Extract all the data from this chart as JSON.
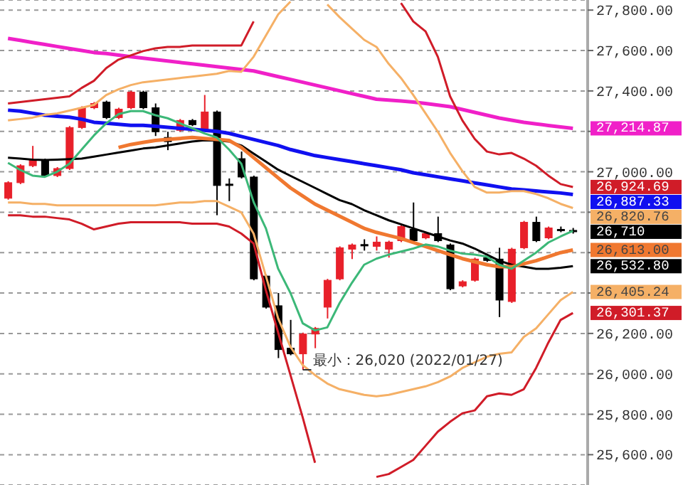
{
  "chart_data": {
    "type": "candlestick",
    "categories": [
      null,
      null,
      null,
      null,
      null,
      null,
      null,
      null,
      null,
      null,
      null,
      null,
      null,
      null,
      null,
      null,
      null,
      null,
      null,
      null,
      null,
      null,
      null,
      null,
      null,
      null,
      null,
      null,
      null,
      null,
      null,
      null,
      null,
      null,
      null,
      null,
      null,
      null,
      null,
      null,
      null,
      null,
      null,
      null,
      null,
      null,
      null
    ],
    "ohlc": [
      [
        26869,
        26953,
        26862,
        26946
      ],
      [
        26946,
        27037,
        26939,
        27030
      ],
      [
        27030,
        27128,
        27023,
        27058
      ],
      [
        27058,
        27065,
        26974,
        26981
      ],
      [
        26981,
        27023,
        26974,
        27016
      ],
      [
        27016,
        27226,
        27009,
        27219
      ],
      [
        27219,
        27324,
        27212,
        27317
      ],
      [
        27317,
        27345,
        27310,
        27338
      ],
      [
        27345,
        27352,
        27261,
        27268
      ],
      [
        27268,
        27317,
        27261,
        27310
      ],
      [
        27317,
        27401,
        27310,
        27394
      ],
      [
        27394,
        27401,
        27310,
        27317
      ],
      [
        27317,
        27338,
        27177,
        27198
      ],
      [
        27170,
        27198,
        27107,
        27149
      ],
      [
        27205,
        27261,
        27198,
        27254
      ],
      [
        27254,
        27261,
        27226,
        27233
      ],
      [
        27212,
        27380,
        27205,
        27296
      ],
      [
        27296,
        27303,
        26785,
        26932
      ],
      [
        26939,
        26967,
        26855,
        26932
      ],
      [
        27065,
        27100,
        26967,
        26974
      ],
      [
        26974,
        26981,
        26463,
        26470
      ],
      [
        26484,
        26491,
        26323,
        26330
      ],
      [
        26337,
        26400,
        26078,
        26120
      ],
      [
        26127,
        26267,
        26092,
        26099
      ],
      [
        26099,
        26204,
        26020,
        26197
      ],
      [
        26197,
        26232,
        26127,
        26225
      ],
      [
        26330,
        26470,
        26274,
        26463
      ],
      [
        26470,
        26631,
        26463,
        26624
      ],
      [
        26617,
        26645,
        26568,
        26638
      ],
      [
        26640,
        26666,
        26610,
        26638
      ],
      [
        26631,
        26680,
        26610,
        26652
      ],
      [
        26617,
        26659,
        26575,
        26652
      ],
      [
        26659,
        26736,
        26652,
        26729
      ],
      [
        26715,
        26848,
        26652,
        26659
      ],
      [
        26673,
        26701,
        26666,
        26694
      ],
      [
        26694,
        26778,
        26652,
        26659
      ],
      [
        26638,
        26645,
        26414,
        26421
      ],
      [
        26435,
        26463,
        26428,
        26456
      ],
      [
        26463,
        26575,
        26456,
        26568
      ],
      [
        26575,
        26582,
        26554,
        26561
      ],
      [
        26568,
        26624,
        26281,
        26365
      ],
      [
        26358,
        26624,
        26351,
        26617
      ],
      [
        26624,
        26757,
        26617,
        26750
      ],
      [
        26750,
        26778,
        26652,
        26659
      ],
      [
        26673,
        26729,
        26666,
        26722
      ],
      [
        26715,
        26729,
        26701,
        26708
      ],
      [
        26710,
        26722,
        26694,
        26710
      ]
    ],
    "colors": [
      "#e8202a",
      "#e8202a",
      "#e8202a",
      "#000000",
      "#e8202a",
      "#e8202a",
      "#e8202a",
      "#e8202a",
      "#000000",
      "#e8202a",
      "#e8202a",
      "#000000",
      "#000000",
      "#000000",
      "#e8202a",
      "#000000",
      "#e8202a",
      "#000000",
      "#000000",
      "#000000",
      "#000000",
      "#000000",
      "#000000",
      "#000000",
      "#e8202a",
      "#e8202a",
      "#e8202a",
      "#e8202a",
      "#e8202a",
      "#000000",
      "#e8202a",
      "#e8202a",
      "#e8202a",
      "#000000",
      "#e8202a",
      "#000000",
      "#000000",
      "#e8202a",
      "#e8202a",
      "#000000",
      "#000000",
      "#e8202a",
      "#e8202a",
      "#000000",
      "#e8202a",
      "#000000",
      "#000000"
    ],
    "value_labels": [
      null,
      null,
      null,
      null,
      null,
      null,
      null,
      null,
      null,
      null,
      null,
      null,
      null,
      null,
      null,
      null,
      null,
      null,
      null,
      null,
      null,
      null,
      null,
      null,
      null,
      null,
      null,
      null,
      null,
      null,
      null,
      null,
      null,
      null,
      null,
      null,
      null,
      null,
      null,
      null,
      null,
      null,
      null,
      null,
      null,
      null,
      "26,710"
    ],
    "series": [
      {
        "type": "line",
        "color": "#f020c8",
        "values": [
          27660,
          27650,
          27640,
          27630,
          27620,
          27610,
          27600,
          27590,
          27585,
          27577,
          27569,
          27562,
          27555,
          27548,
          27541,
          27534,
          27527,
          27520,
          27513,
          27506,
          27499,
          27485,
          27471,
          27457,
          27443,
          27429,
          27415,
          27401,
          27387,
          27373,
          27359,
          27355,
          27350,
          27345,
          27338,
          27330,
          27322,
          27308,
          27294,
          27280,
          27266,
          27255,
          27245,
          27237,
          27229,
          27222,
          27214.87
        ],
        "value_labels": [
          null,
          null,
          null,
          null,
          null,
          null,
          null,
          null,
          null,
          null,
          null,
          null,
          null,
          null,
          null,
          null,
          null,
          null,
          null,
          null,
          null,
          null,
          null,
          null,
          null,
          null,
          null,
          null,
          null,
          null,
          null,
          null,
          null,
          null,
          null,
          null,
          null,
          null,
          null,
          null,
          null,
          null,
          null,
          null,
          null,
          null,
          "27,214.87"
        ]
      },
      {
        "type": "line",
        "color": "#d01c28",
        "values": [
          27338,
          27345,
          27352,
          27359,
          27366,
          27373,
          27415,
          27450,
          27513,
          27555,
          27576,
          27597,
          27611,
          27618,
          27618,
          27625,
          27625,
          27625,
          27625,
          27625,
          27744,
          null,
          null,
          null,
          null,
          null,
          null,
          null,
          null,
          null,
          null,
          null,
          27835,
          27744,
          27695,
          27569,
          27373,
          27254,
          27163,
          27100,
          27086,
          27093,
          27065,
          27030,
          26981,
          26939,
          26924.69
        ],
        "value_labels": [
          null,
          null,
          null,
          null,
          null,
          null,
          null,
          null,
          null,
          null,
          null,
          null,
          null,
          null,
          null,
          null,
          null,
          null,
          null,
          null,
          null,
          null,
          null,
          null,
          null,
          null,
          null,
          null,
          null,
          null,
          null,
          null,
          null,
          null,
          null,
          null,
          null,
          null,
          null,
          null,
          null,
          null,
          null,
          null,
          null,
          null,
          "26,924.69"
        ]
      },
      {
        "type": "line",
        "color": "#1010f0",
        "values": [
          27305,
          27300,
          27290,
          27280,
          27275,
          27270,
          27260,
          27245,
          27240,
          27235,
          27230,
          27230,
          27225,
          27220,
          27215,
          27210,
          27205,
          27200,
          27190,
          27175,
          27160,
          27145,
          27130,
          27110,
          27095,
          27080,
          27070,
          27060,
          27050,
          27040,
          27030,
          27020,
          27010,
          26995,
          26985,
          26975,
          26965,
          26955,
          26945,
          26935,
          26925,
          26915,
          26910,
          26905,
          26900,
          26895,
          26887.33
        ],
        "value_labels": [
          null,
          null,
          null,
          null,
          null,
          null,
          null,
          null,
          null,
          null,
          null,
          null,
          null,
          null,
          null,
          null,
          null,
          null,
          null,
          null,
          null,
          null,
          null,
          null,
          null,
          null,
          null,
          null,
          null,
          null,
          null,
          null,
          null,
          null,
          null,
          null,
          null,
          null,
          null,
          null,
          null,
          null,
          null,
          null,
          null,
          null,
          "26,887.33"
        ]
      },
      {
        "type": "line",
        "color": "#f5b066",
        "values": [
          27254,
          27261,
          27268,
          27282,
          27289,
          27303,
          27317,
          27331,
          27380,
          27408,
          27429,
          27443,
          27450,
          27457,
          27464,
          27471,
          27478,
          27485,
          27499,
          27495,
          27569,
          27674,
          27779,
          27842,
          null,
          null,
          27828,
          27765,
          27709,
          27653,
          27618,
          27534,
          27464,
          27380,
          27289,
          27198,
          27093,
          27003,
          26925,
          26897,
          26897,
          26904,
          26904,
          26890,
          26869,
          26841,
          26820.76
        ],
        "value_labels": [
          null,
          null,
          null,
          null,
          null,
          null,
          null,
          null,
          null,
          null,
          null,
          null,
          null,
          null,
          null,
          null,
          null,
          null,
          null,
          null,
          null,
          null,
          null,
          null,
          null,
          null,
          null,
          null,
          null,
          null,
          null,
          null,
          null,
          null,
          null,
          null,
          null,
          null,
          null,
          null,
          null,
          null,
          null,
          null,
          null,
          null,
          "26,820.76"
        ]
      },
      {
        "type": "line",
        "color": "#000000",
        "values": [
          27070,
          27065,
          27060,
          27058,
          27060,
          27063,
          27065,
          27075,
          27085,
          27095,
          27105,
          27115,
          27121,
          27130,
          27140,
          27150,
          27156,
          27155,
          27150,
          27130,
          27090,
          27050,
          27010,
          26980,
          26950,
          26920,
          26890,
          26860,
          26840,
          26810,
          26785,
          26760,
          26740,
          26720,
          26700,
          26680,
          26660,
          26645,
          26620,
          26590,
          26560,
          26540,
          26530,
          26520,
          26520,
          26525,
          26532.8
        ],
        "value_labels": [
          null,
          null,
          null,
          null,
          null,
          null,
          null,
          null,
          null,
          null,
          null,
          null,
          null,
          null,
          null,
          null,
          null,
          null,
          null,
          null,
          null,
          null,
          null,
          null,
          null,
          null,
          null,
          null,
          null,
          null,
          null,
          null,
          null,
          null,
          null,
          null,
          null,
          null,
          null,
          null,
          null,
          null,
          null,
          null,
          null,
          null,
          "26,532.80"
        ]
      },
      {
        "type": "line",
        "color": "#f07830",
        "values": [
          null,
          null,
          null,
          null,
          null,
          null,
          null,
          null,
          null,
          27120,
          27135,
          27145,
          27155,
          27160,
          27165,
          27170,
          27165,
          27160,
          27155,
          27120,
          27070,
          27020,
          26970,
          26920,
          26880,
          26840,
          26810,
          26780,
          26750,
          26720,
          26700,
          26685,
          26670,
          26650,
          26630,
          26610,
          26590,
          26570,
          26555,
          26540,
          26530,
          26530,
          26545,
          26560,
          26580,
          26600,
          26613
        ],
        "value_labels": [
          null,
          null,
          null,
          null,
          null,
          null,
          null,
          null,
          null,
          null,
          null,
          null,
          null,
          null,
          null,
          null,
          null,
          null,
          null,
          null,
          null,
          null,
          null,
          null,
          null,
          null,
          null,
          null,
          null,
          null,
          null,
          null,
          null,
          null,
          null,
          null,
          null,
          null,
          null,
          null,
          null,
          null,
          null,
          null,
          null,
          null,
          "26,613.00"
        ]
      },
      {
        "type": "line",
        "color": "#3cb878",
        "values": [
          27044,
          27009,
          26981,
          26975,
          27000,
          27040,
          27110,
          27180,
          27240,
          27285,
          27300,
          27300,
          27280,
          27265,
          27240,
          27215,
          27190,
          27170,
          27110,
          27040,
          26850,
          26720,
          26520,
          26400,
          26250,
          26215,
          26230,
          26350,
          26450,
          26540,
          26570,
          26590,
          26605,
          26620,
          26640,
          26630,
          26610,
          26595,
          26590,
          26580,
          26540,
          26520,
          26560,
          26600,
          26650,
          26680,
          26708
        ]
      },
      {
        "type": "line",
        "color": "#f5b066",
        "values": [
          26848,
          26848,
          26841,
          26841,
          26834,
          26834,
          26834,
          26834,
          26834,
          26834,
          26834,
          26834,
          26834,
          26841,
          26848,
          26848,
          26855,
          26855,
          26827,
          26799,
          26694,
          26484,
          26274,
          26134,
          26043,
          25994,
          25952,
          25924,
          25910,
          25896,
          25889,
          25896,
          25910,
          25924,
          25938,
          25959,
          25987,
          26029,
          26057,
          26085,
          26099,
          26106,
          26183,
          26225,
          26295,
          26365,
          26405.24
        ],
        "value_labels": [
          null,
          null,
          null,
          null,
          null,
          null,
          null,
          null,
          null,
          null,
          null,
          null,
          null,
          null,
          null,
          null,
          null,
          null,
          null,
          null,
          null,
          null,
          null,
          null,
          null,
          null,
          null,
          null,
          null,
          null,
          null,
          null,
          null,
          null,
          null,
          null,
          null,
          null,
          null,
          null,
          null,
          null,
          null,
          null,
          null,
          null,
          "26,405.24"
        ]
      },
      {
        "type": "line",
        "color": "#d01c28",
        "values": [
          26785,
          26785,
          26778,
          26778,
          26771,
          26764,
          26743,
          26715,
          26729,
          26743,
          26750,
          26750,
          26750,
          26750,
          26750,
          26743,
          26743,
          26743,
          26729,
          26694,
          26645,
          26414,
          26204,
          25994,
          25784,
          25560,
          null,
          null,
          null,
          null,
          25490,
          25504,
          25539,
          25574,
          25644,
          25714,
          25763,
          25805,
          25819,
          25889,
          25903,
          25896,
          25924,
          26029,
          26155,
          26267,
          26301.37
        ],
        "value_labels": [
          null,
          null,
          null,
          null,
          null,
          null,
          null,
          null,
          null,
          null,
          null,
          null,
          null,
          null,
          null,
          null,
          null,
          null,
          null,
          null,
          null,
          null,
          null,
          null,
          null,
          null,
          null,
          null,
          null,
          null,
          null,
          null,
          null,
          null,
          null,
          null,
          null,
          null,
          null,
          null,
          null,
          null,
          null,
          null,
          null,
          null,
          "26,301.37"
        ]
      }
    ],
    "ylim": [
      25450,
      27850
    ],
    "yticks": [
      {
        "value": 25600,
        "label": "25,600.00"
      },
      {
        "value": 25800,
        "label": "25,800.00"
      },
      {
        "value": 26000,
        "label": "26,000.00"
      },
      {
        "value": 26200,
        "label": "26,200.00"
      },
      {
        "value": 26400,
        "label": null
      },
      {
        "value": 26600,
        "label": null
      },
      {
        "value": 26800,
        "label": null
      },
      {
        "value": 27000,
        "label": "27,000.00"
      },
      {
        "value": 27200,
        "label": null
      },
      {
        "value": 27400,
        "label": "27,400.00"
      },
      {
        "value": 27600,
        "label": "27,600.00"
      },
      {
        "value": 27800,
        "label": "27,800.00"
      }
    ],
    "grid": "y",
    "annotations": [
      "最小：26,020 (2022/01/27)"
    ]
  }
}
